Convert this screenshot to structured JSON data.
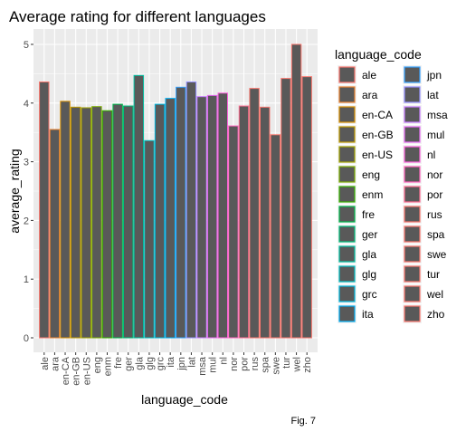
{
  "chart_data": {
    "type": "bar",
    "title": "Average rating for different languages",
    "xlabel": "language_code",
    "ylabel": "average_rating",
    "ylim": [
      0,
      5.2
    ],
    "yticks": [
      0,
      1,
      2,
      3,
      4,
      5
    ],
    "categories": [
      "ale",
      "ara",
      "en-CA",
      "en-GB",
      "en-US",
      "eng",
      "enm",
      "fre",
      "ger",
      "gla",
      "glg",
      "grc",
      "ita",
      "jpn",
      "lat",
      "msa",
      "mul",
      "nl",
      "nor",
      "por",
      "rus",
      "spa",
      "swe",
      "tur",
      "wel",
      "zho"
    ],
    "values": [
      4.36,
      3.55,
      4.03,
      3.93,
      3.92,
      3.94,
      3.87,
      3.98,
      3.95,
      4.47,
      3.36,
      3.98,
      4.08,
      4.27,
      4.36,
      4.11,
      4.13,
      4.17,
      3.61,
      3.95,
      4.25,
      3.93,
      3.46,
      4.42,
      5.0,
      4.45
    ],
    "bar_fill": "#595959",
    "outline_colors": [
      "#F8766D",
      "#EA8331",
      "#D89000",
      "#C09B00",
      "#A3A500",
      "#7CAE00",
      "#39B600",
      "#00BB4E",
      "#00BF7D",
      "#00C1A3",
      "#00BFC4",
      "#00BAE0",
      "#00B0F6",
      "#35A2FF",
      "#9590FF",
      "#C77CFF",
      "#E76BF3",
      "#FA62DB",
      "#FF62BC",
      "#FF6C91",
      "#F8766D",
      "#F8766D",
      "#F8766D",
      "#F8766D",
      "#F8766D",
      "#F8766D"
    ],
    "legend": {
      "title": "language_code",
      "placement": "right",
      "columns": 2
    },
    "grid": true,
    "panel_background": "#EBEBEB"
  },
  "caption": "Fig. 7"
}
